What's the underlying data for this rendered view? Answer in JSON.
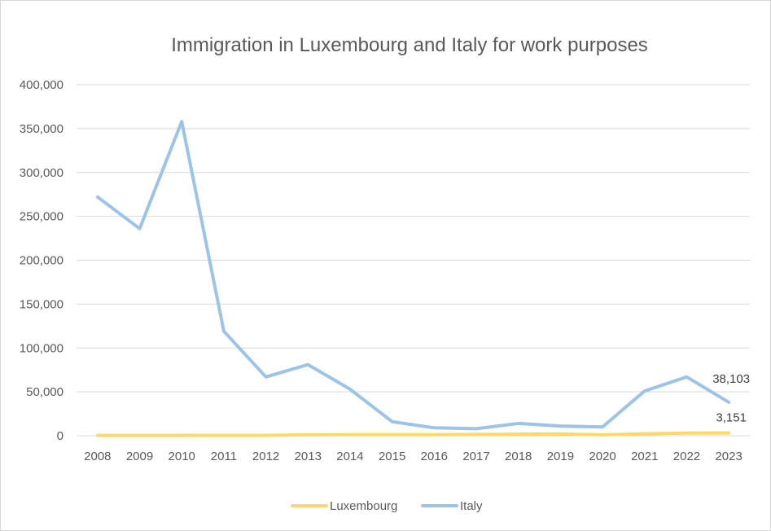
{
  "chart_data": {
    "type": "line",
    "title": "Immigration in Luxembourg and Italy for work purposes",
    "xlabel": "",
    "ylabel": "",
    "categories": [
      "2008",
      "2009",
      "2010",
      "2011",
      "2012",
      "2013",
      "2014",
      "2015",
      "2016",
      "2017",
      "2018",
      "2019",
      "2020",
      "2021",
      "2022",
      "2023"
    ],
    "ylim": [
      0,
      400000
    ],
    "yticks": [
      0,
      50000,
      100000,
      150000,
      200000,
      250000,
      300000,
      350000,
      400000
    ],
    "ytick_labels": [
      "0",
      "50,000",
      "100,000",
      "150,000",
      "200,000",
      "250,000",
      "300,000",
      "350,000",
      "400,000"
    ],
    "grid": true,
    "legend_position": "bottom",
    "series": [
      {
        "name": "Luxembourg",
        "color": "#FFD966",
        "values": [
          300,
          350,
          400,
          450,
          500,
          1000,
          1200,
          1100,
          1200,
          1500,
          1800,
          2000,
          1000,
          2200,
          3000,
          3151
        ],
        "end_label": "3,151"
      },
      {
        "name": "Italy",
        "color": "#9DC3E6",
        "values": [
          272000,
          236000,
          358000,
          119000,
          67000,
          81000,
          53000,
          16000,
          9000,
          8000,
          14000,
          11000,
          10000,
          51000,
          67000,
          38103
        ],
        "end_label": "38,103"
      }
    ]
  }
}
